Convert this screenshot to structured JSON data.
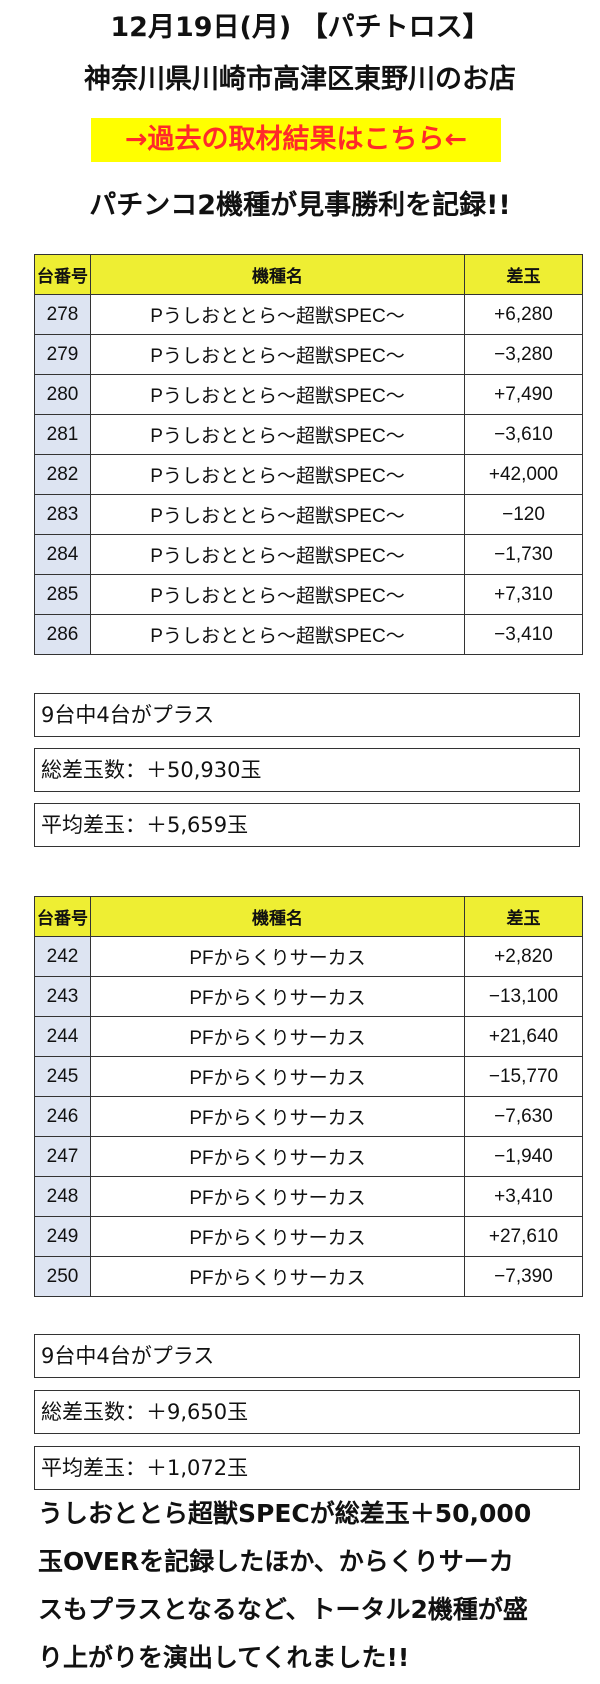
{
  "header": {
    "title_line1": "12月19日(月) 【パチトロス】",
    "title_line2": "神奈川県川崎市高津区東野川のお店",
    "link_text": "→過去の取材結果はこちら←",
    "headline": "パチンコ2機種が見事勝利を記録!!"
  },
  "colors": {
    "link_bg": "#ffff00",
    "link_text": "#ff2a2a",
    "table_header_bg": "#eeee33",
    "num_cell_bg": "#dde4f2"
  },
  "table1": {
    "headers": [
      "台番号",
      "機種名",
      "差玉"
    ],
    "rows": [
      [
        "278",
        "Pうしおととら～超獣SPEC～",
        "+6,280"
      ],
      [
        "279",
        "Pうしおととら～超獣SPEC～",
        "−3,280"
      ],
      [
        "280",
        "Pうしおととら～超獣SPEC～",
        "+7,490"
      ],
      [
        "281",
        "Pうしおととら～超獣SPEC～",
        "−3,610"
      ],
      [
        "282",
        "Pうしおととら～超獣SPEC～",
        "+42,000"
      ],
      [
        "283",
        "Pうしおととら～超獣SPEC～",
        "−120"
      ],
      [
        "284",
        "Pうしおととら～超獣SPEC～",
        "−1,730"
      ],
      [
        "285",
        "Pうしおととら～超獣SPEC～",
        "+7,310"
      ],
      [
        "286",
        "Pうしおととら～超獣SPEC～",
        "−3,410"
      ]
    ],
    "summary": [
      "9台中4台がプラス",
      "総差玉数：＋50,930玉",
      "平均差玉：＋5,659玉"
    ]
  },
  "table2": {
    "headers": [
      "台番号",
      "機種名",
      "差玉"
    ],
    "rows": [
      [
        "242",
        "PFからくりサーカス",
        "+2,820"
      ],
      [
        "243",
        "PFからくりサーカス",
        "−13,100"
      ],
      [
        "244",
        "PFからくりサーカス",
        "+21,640"
      ],
      [
        "245",
        "PFからくりサーカス",
        "−15,770"
      ],
      [
        "246",
        "PFからくりサーカス",
        "−7,630"
      ],
      [
        "247",
        "PFからくりサーカス",
        "−1,940"
      ],
      [
        "248",
        "PFからくりサーカス",
        "+3,410"
      ],
      [
        "249",
        "PFからくりサーカス",
        "+27,610"
      ],
      [
        "250",
        "PFからくりサーカス",
        "−7,390"
      ]
    ],
    "summary": [
      "9台中4台がプラス",
      "総差玉数：＋9,650玉",
      "平均差玉：＋1,072玉"
    ]
  },
  "paragraph": [
    "うしおととら超獣SPECが総差玉＋50,000",
    "玉OVERを記録したほか、からくりサーカ",
    "スもプラスとなるなど、トータル2機種が盛",
    "り上がりを演出してくれました!!"
  ]
}
